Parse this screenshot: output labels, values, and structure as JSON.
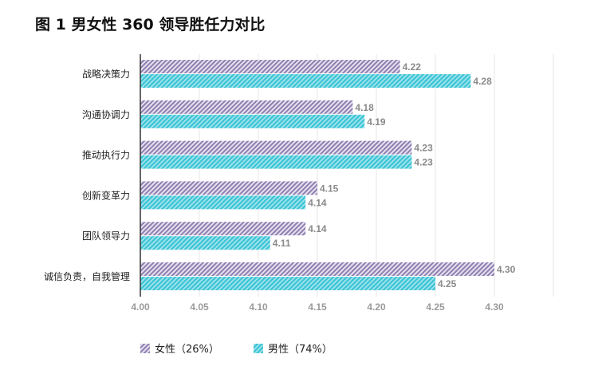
{
  "title": "图 1  男女性 360 领导胜任力对比",
  "chart_data": {
    "type": "bar",
    "orientation": "horizontal",
    "title": "图 1  男女性 360 领导胜任力对比",
    "categories": [
      "战略决策力",
      "沟通协调力",
      "推动执行力",
      "创新变革力",
      "团队领导力",
      "诚信负责，自我管理"
    ],
    "series": [
      {
        "name": "女性（26%）",
        "color": "#8e7fb0",
        "values": [
          4.22,
          4.18,
          4.23,
          4.15,
          4.14,
          4.3
        ]
      },
      {
        "name": "男性（74%）",
        "color": "#3ec5d6",
        "values": [
          4.28,
          4.19,
          4.23,
          4.14,
          4.11,
          4.25
        ]
      }
    ],
    "xlim": [
      4.0,
      4.35
    ],
    "xticks": [
      "4.00",
      "4.05",
      "4.10",
      "4.15",
      "4.20",
      "4.25",
      "4.30"
    ],
    "grid": true,
    "legend": "bottom-left"
  }
}
